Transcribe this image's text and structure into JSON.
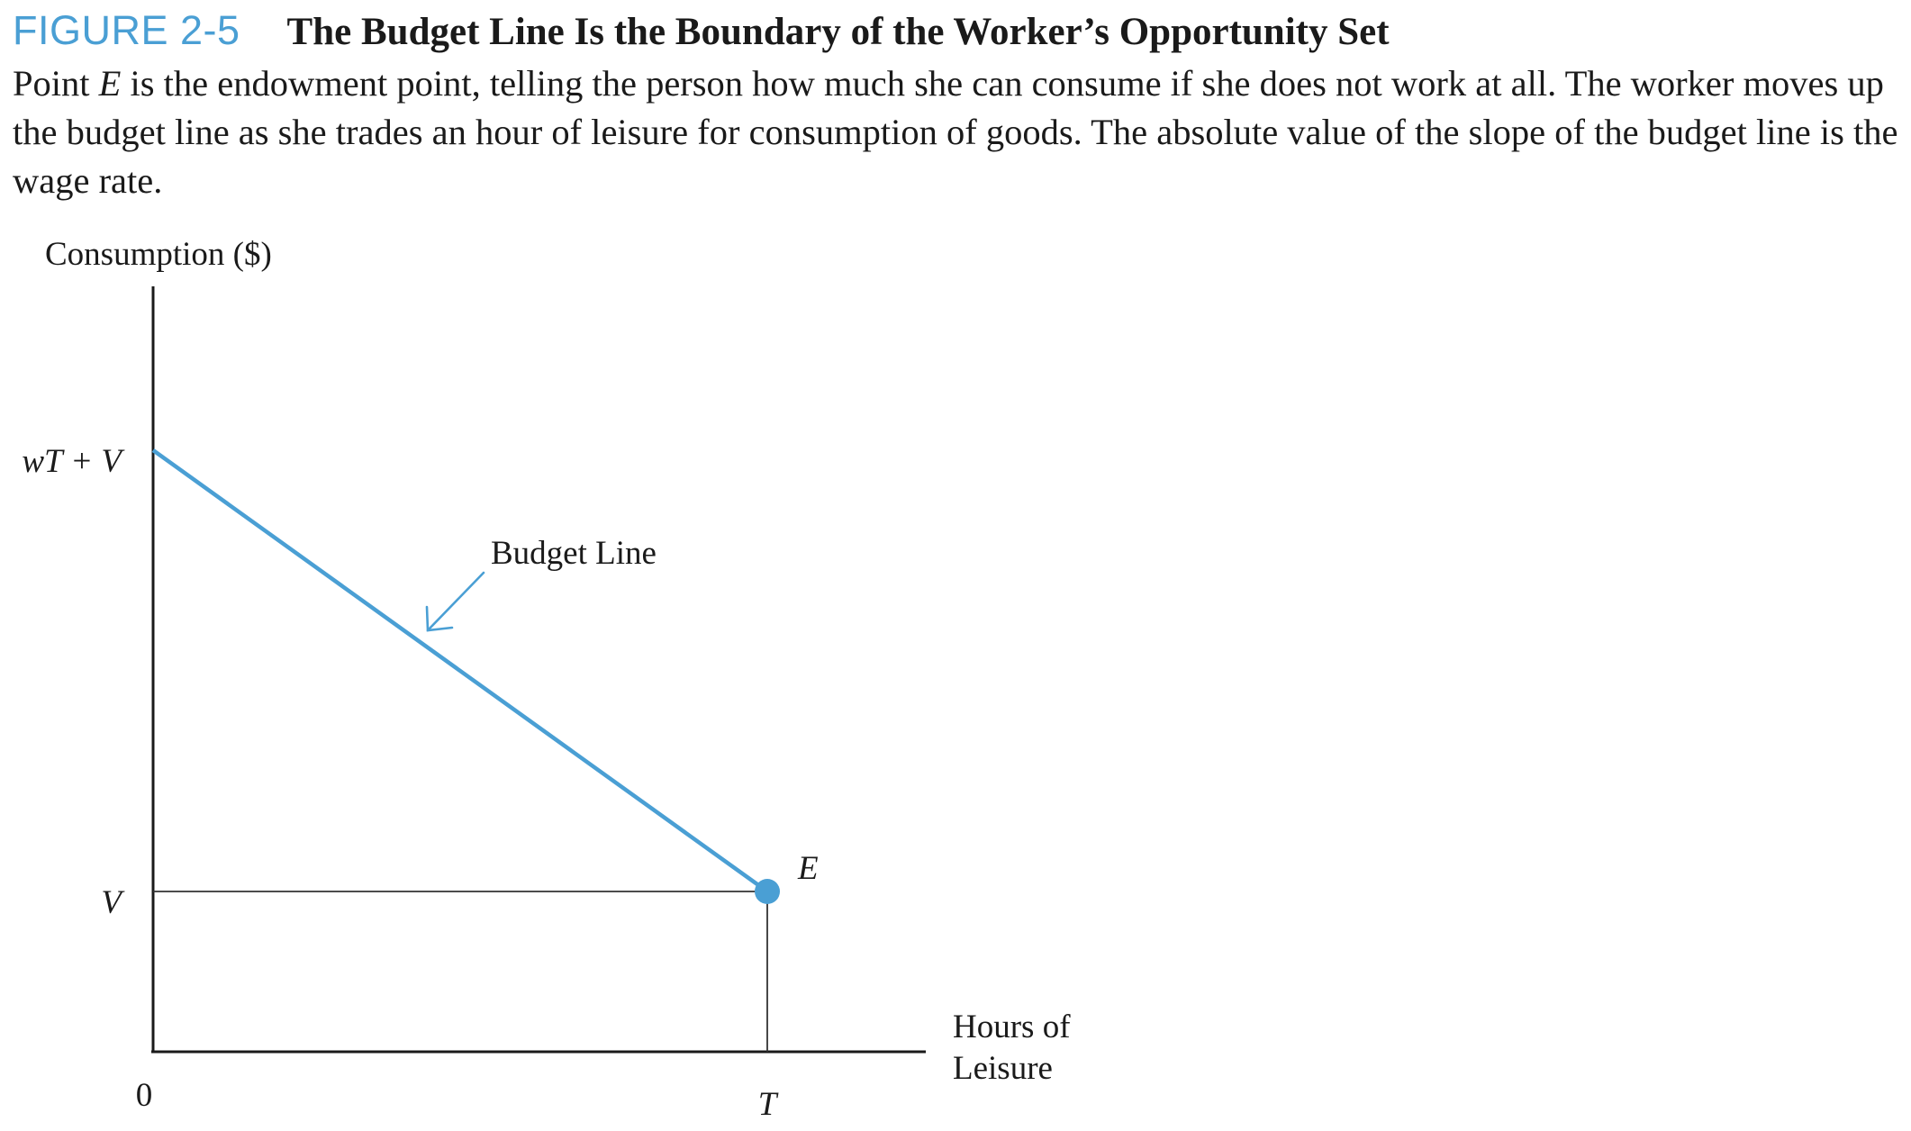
{
  "figure": {
    "label": "FIGURE 2-5",
    "title": "The Budget Line Is the Boundary of the Worker’s Opportunity Set",
    "caption": {
      "part1": "Point ",
      "var": "E",
      "part2": " is the endowment point, telling the person how much she can consume if she does not work at all. The worker moves up the budget line as she trades an hour of leisure for consumption of goods. The absolute value of the slope of the budget line is the wage rate."
    }
  },
  "chart_data": {
    "type": "line",
    "ylabel": "Consumption ($)",
    "xlabel_lines": [
      "Hours of",
      "Leisure"
    ],
    "origin_label": "0",
    "x_ticks": [
      {
        "label": "T",
        "value": "T"
      }
    ],
    "y_ticks": [
      {
        "label": "wT + V",
        "value": "wT + V"
      },
      {
        "label": "V",
        "value": "V"
      }
    ],
    "series": [
      {
        "name": "Budget Line",
        "points": [
          {
            "x": "0",
            "y": "wT + V"
          },
          {
            "x": "T",
            "y": "V"
          }
        ]
      }
    ],
    "annotations": [
      {
        "text": "Budget Line",
        "points_to": "budget line"
      },
      {
        "text": "E",
        "at": {
          "x": "T",
          "y": "V"
        }
      }
    ],
    "grid": false,
    "colors": {
      "series": "#4a9fd4",
      "axes": "#1a1a1a",
      "guides": "#333333"
    }
  }
}
